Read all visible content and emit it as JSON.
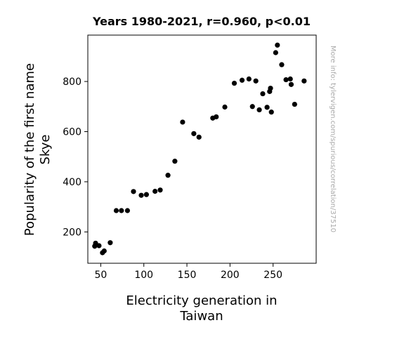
{
  "chart_data": {
    "type": "scatter",
    "title": "Years 1980-2021, r=0.960, p<0.01",
    "xlabel_lines": [
      "Electricity generation in",
      "Taiwan"
    ],
    "ylabel_lines": [
      "Popularity of the first name",
      "Skye"
    ],
    "side_note": "More info: tylervigen.com/spurious/correlation/37510",
    "xlim": [
      35,
      300
    ],
    "ylim": [
      75,
      985
    ],
    "xticks": [
      50,
      100,
      150,
      200,
      250
    ],
    "yticks": [
      200,
      400,
      600,
      800
    ],
    "marker_color": "#000000",
    "points": [
      [
        43,
        143
      ],
      [
        44,
        155
      ],
      [
        48,
        145
      ],
      [
        52,
        117
      ],
      [
        54,
        124
      ],
      [
        61,
        157
      ],
      [
        68,
        285
      ],
      [
        74,
        285
      ],
      [
        81,
        285
      ],
      [
        88,
        361
      ],
      [
        97,
        346
      ],
      [
        103,
        349
      ],
      [
        113,
        362
      ],
      [
        119,
        367
      ],
      [
        128,
        426
      ],
      [
        136,
        482
      ],
      [
        145,
        638
      ],
      [
        158,
        592
      ],
      [
        164,
        578
      ],
      [
        180,
        654
      ],
      [
        184,
        659
      ],
      [
        194,
        698
      ],
      [
        205,
        793
      ],
      [
        214,
        805
      ],
      [
        222,
        810
      ],
      [
        226,
        700
      ],
      [
        230,
        802
      ],
      [
        234,
        687
      ],
      [
        238,
        751
      ],
      [
        243,
        697
      ],
      [
        246,
        760
      ],
      [
        247,
        773
      ],
      [
        248,
        678
      ],
      [
        253,
        915
      ],
      [
        255,
        945
      ],
      [
        260,
        867
      ],
      [
        265,
        807
      ],
      [
        270,
        810
      ],
      [
        271,
        788
      ],
      [
        275,
        709
      ],
      [
        286,
        802
      ]
    ]
  }
}
